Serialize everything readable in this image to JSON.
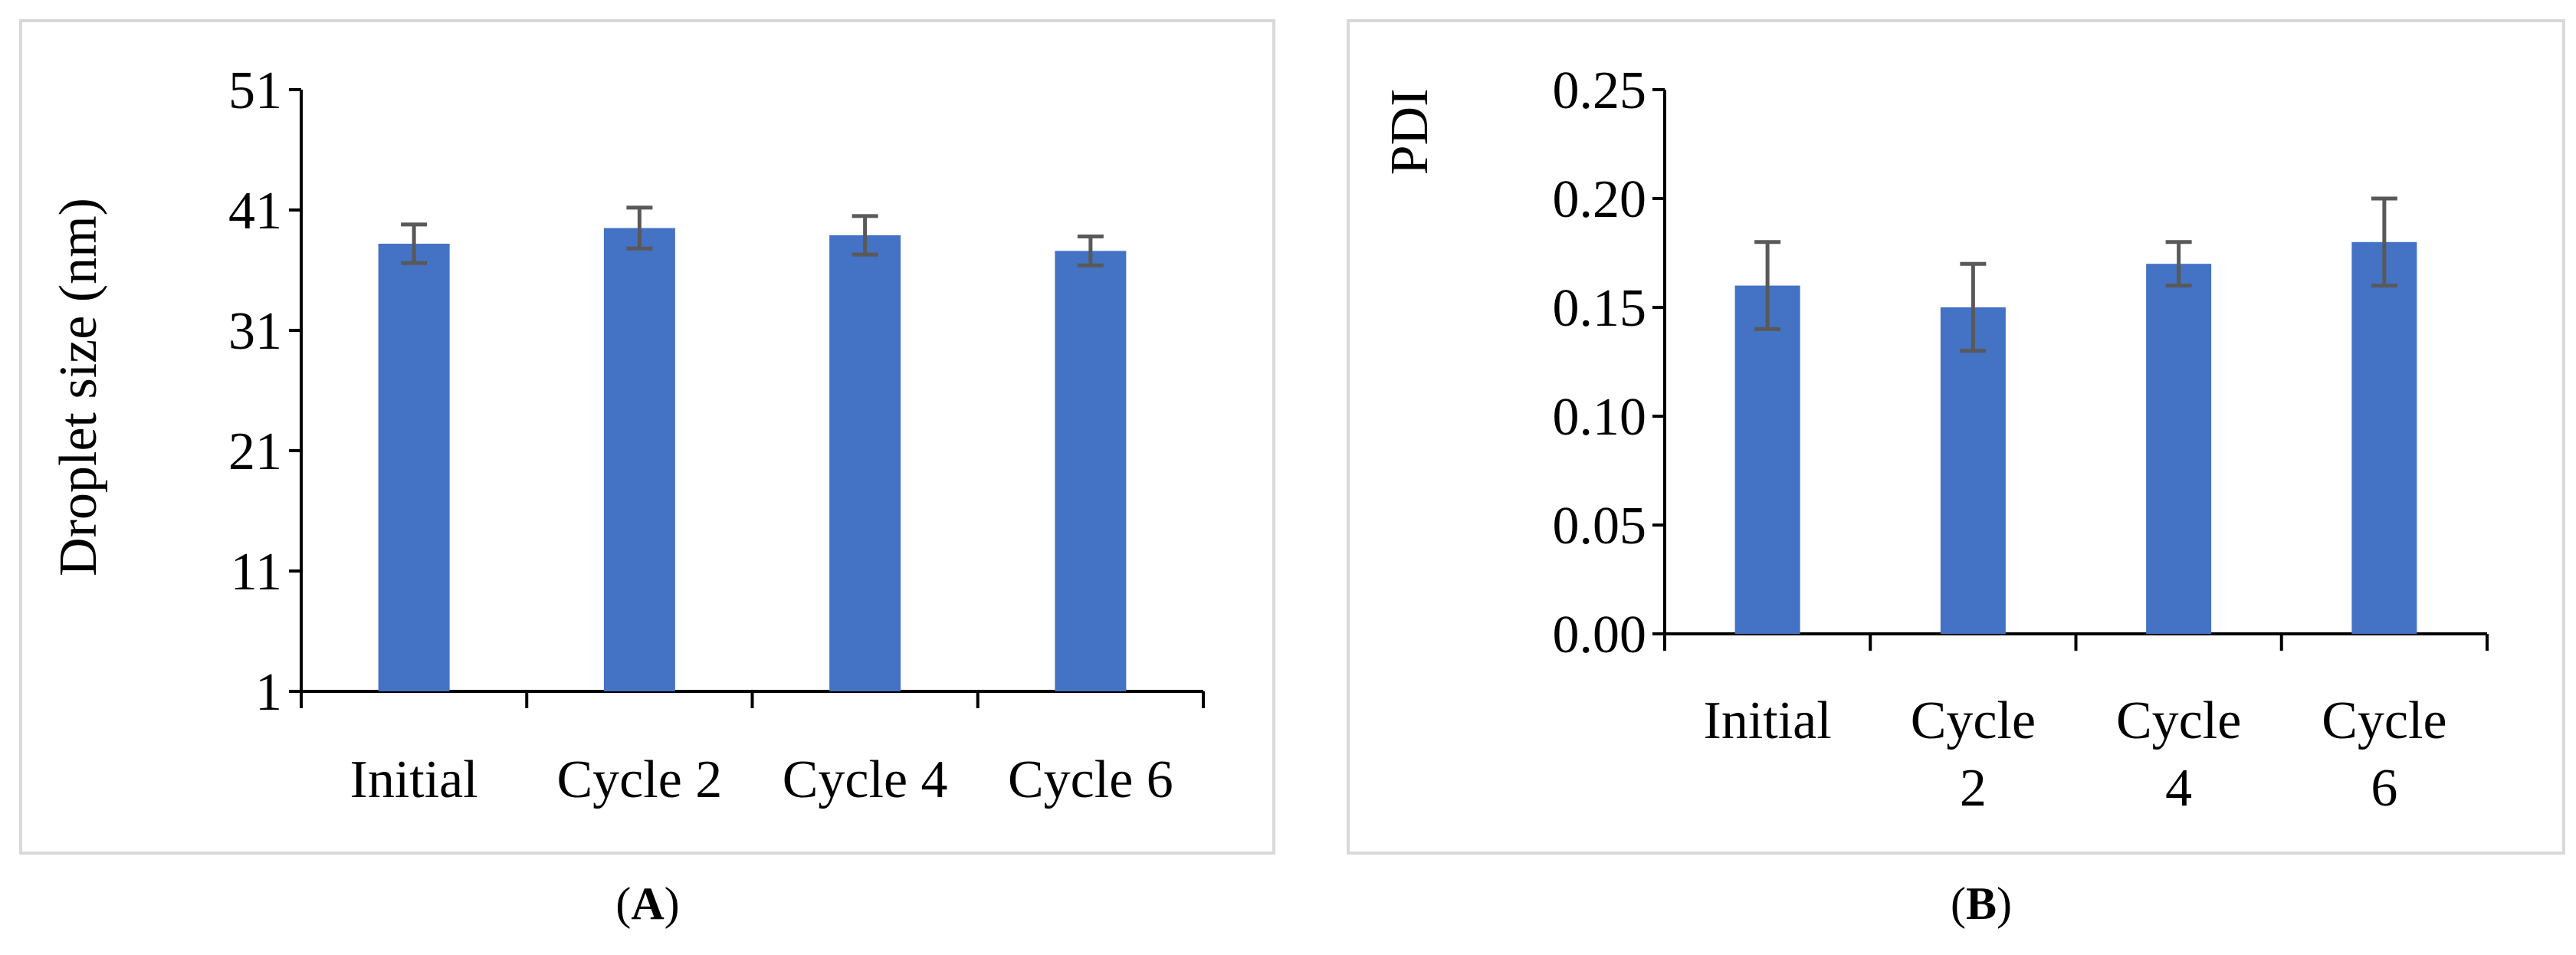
{
  "chart_data": [
    {
      "type": "bar",
      "panel_label": "A",
      "title": "",
      "xlabel": "",
      "ylabel": "Droplet size  (nm)",
      "categories": [
        "Initial",
        "Cycle 2",
        "Cycle 4",
        "Cycle 6"
      ],
      "values": [
        38.2,
        39.5,
        38.9,
        37.6
      ],
      "errors": [
        1.6,
        1.7,
        1.6,
        1.2
      ],
      "yticks": [
        "1",
        "11",
        "21",
        "31",
        "41",
        "51"
      ],
      "ylim": [
        1,
        51
      ],
      "grid": false,
      "bar_color": "#4472c4",
      "error_color": "#595959"
    },
    {
      "type": "bar",
      "panel_label": "B",
      "title": "",
      "xlabel": "",
      "ylabel": "PDI",
      "categories": [
        [
          "Initial"
        ],
        [
          "Cycle",
          "2"
        ],
        [
          "Cycle",
          "4"
        ],
        [
          "Cycle",
          "6"
        ]
      ],
      "values": [
        0.16,
        0.15,
        0.17,
        0.18
      ],
      "errors": [
        0.02,
        0.02,
        0.01,
        0.02
      ],
      "yticks": [
        "0.00",
        "0.05",
        "0.10",
        "0.15",
        "0.20",
        "0.25"
      ],
      "ylim": [
        0,
        0.25
      ],
      "grid": false,
      "bar_color": "#4472c4",
      "error_color": "#595959"
    }
  ],
  "captions": {
    "a": {
      "open": "(",
      "letter": "A",
      "close": ")"
    },
    "b": {
      "open": "(",
      "letter": "B",
      "close": ")"
    }
  }
}
